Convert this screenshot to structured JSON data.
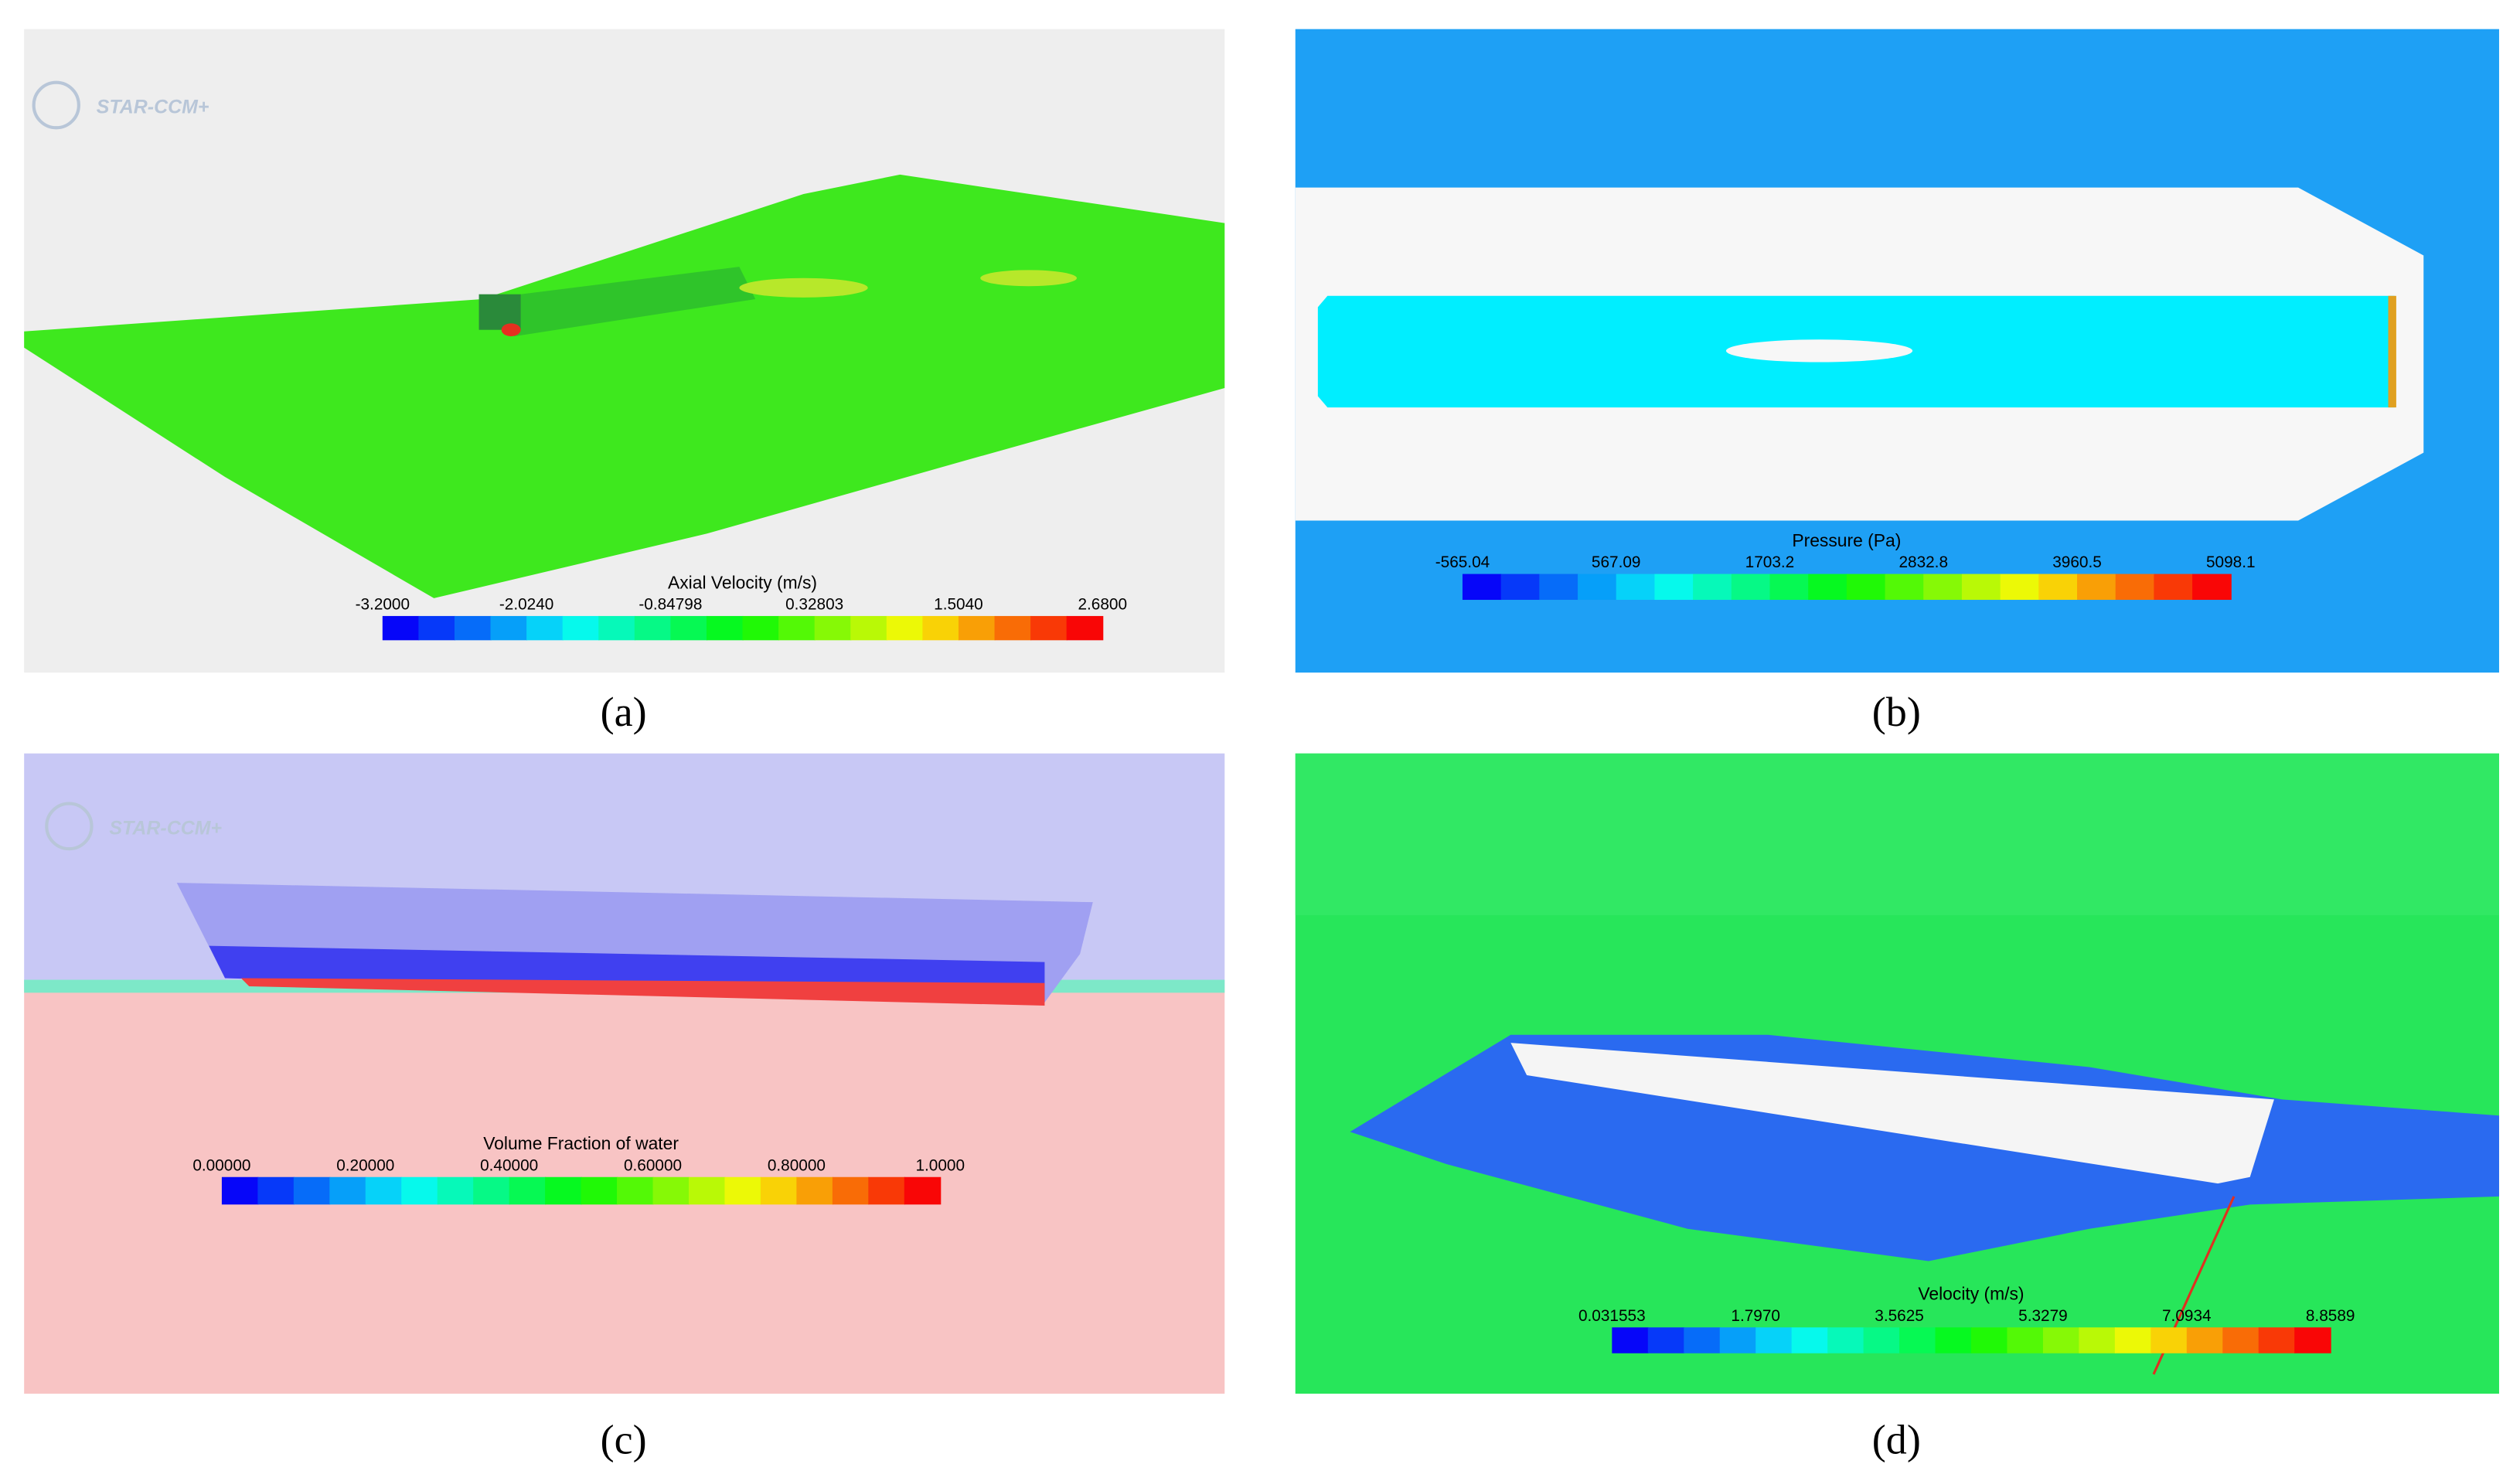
{
  "panels": [
    {
      "label": "(a)",
      "logo": "STAR-CCM+",
      "colorbar": {
        "title": "Axial Velocity (m/s)",
        "ticks": [
          "-3.2000",
          "-2.0240",
          "-0.84798",
          "0.32803",
          "1.5040",
          "2.6800"
        ]
      }
    },
    {
      "label": "(b)",
      "colorbar": {
        "title": "Pressure (Pa)",
        "ticks": [
          "-565.04",
          "567.09",
          "1703.2",
          "2832.8",
          "3960.5",
          "5098.1"
        ]
      }
    },
    {
      "label": "(c)",
      "logo": "STAR-CCM+",
      "colorbar": {
        "title": "Volume Fraction of water",
        "ticks": [
          "0.00000",
          "0.20000",
          "0.40000",
          "0.60000",
          "0.80000",
          "1.0000"
        ]
      }
    },
    {
      "label": "(d)",
      "colorbar": {
        "title": "Velocity (m/s)",
        "ticks": [
          "0.031553",
          "1.7970",
          "3.5625",
          "5.3279",
          "7.0934",
          "8.8589"
        ]
      }
    }
  ]
}
